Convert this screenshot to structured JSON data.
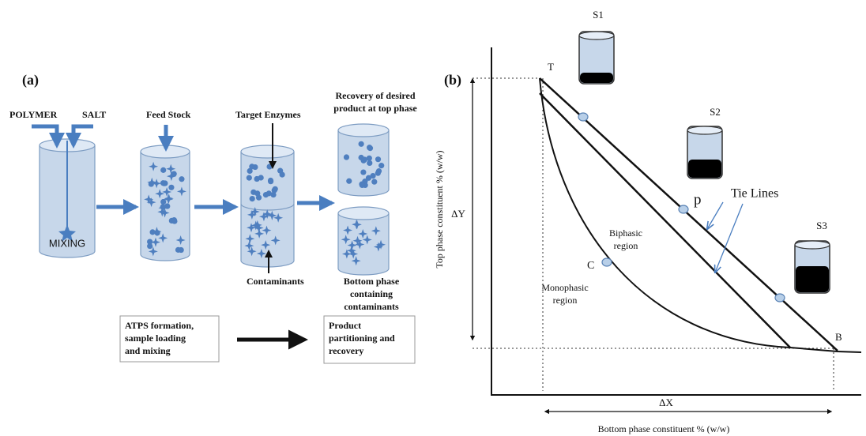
{
  "panel_a": {
    "label": "(a)",
    "polymer": "POLYMER",
    "salt": "SALT",
    "mixing": "MIXING",
    "feed_stock": "Feed Stock",
    "target_enzymes": "Target Enzymes",
    "recovery": [
      "Recovery of desired",
      "product at top phase"
    ],
    "contaminants": "Contaminants",
    "bottom_phase": [
      "Bottom phase",
      "containing",
      "contaminants"
    ],
    "step1": [
      "ATPS formation,",
      "sample loading",
      "and mixing"
    ],
    "step2": [
      "Product",
      "partitioning and",
      "recovery"
    ]
  },
  "panel_b": {
    "label": "(b)",
    "samples": [
      "S1",
      "S2",
      "S3"
    ],
    "point_t": "T",
    "point_b": "B",
    "point_p": "p",
    "point_c": "C",
    "tie_lines": "Tie Lines",
    "biphasic": [
      "Biphasic",
      "region"
    ],
    "monophasic": [
      "Monophasic",
      "region"
    ],
    "delta_y": "ΔY",
    "delta_x": "ΔX",
    "y_axis_label": "Top phase constituent % (w/w)",
    "x_axis_label": "Bottom phase constituent % (w/w)"
  }
}
